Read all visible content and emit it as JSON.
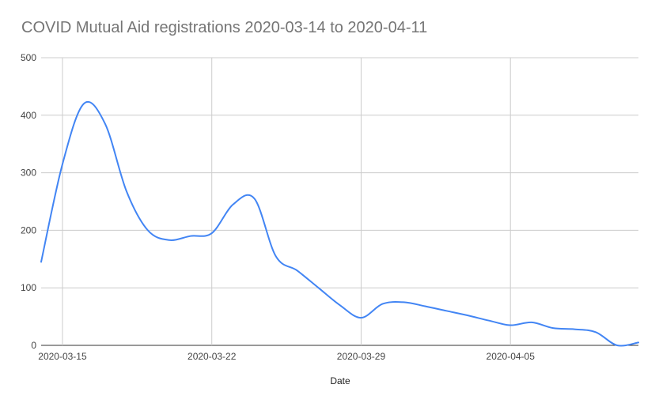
{
  "chart_data": {
    "type": "line",
    "title": "COVID Mutual Aid registrations 2020-03-14 to 2020-04-11",
    "xlabel": "Date",
    "ylabel": "",
    "ylim": [
      0,
      500
    ],
    "yticks": [
      0,
      100,
      200,
      300,
      400,
      500
    ],
    "xticks": [
      "2020-03-15",
      "2020-03-22",
      "2020-03-29",
      "2020-04-05"
    ],
    "grid": true,
    "legend": "none",
    "color": "#4285f4",
    "x": [
      "2020-03-14",
      "2020-03-15",
      "2020-03-16",
      "2020-03-17",
      "2020-03-18",
      "2020-03-19",
      "2020-03-20",
      "2020-03-21",
      "2020-03-22",
      "2020-03-23",
      "2020-03-24",
      "2020-03-25",
      "2020-03-26",
      "2020-03-27",
      "2020-03-28",
      "2020-03-29",
      "2020-03-30",
      "2020-03-31",
      "2020-04-01",
      "2020-04-02",
      "2020-04-03",
      "2020-04-04",
      "2020-04-05",
      "2020-04-06",
      "2020-04-07",
      "2020-04-08",
      "2020-04-09",
      "2020-04-10",
      "2020-04-11"
    ],
    "series": [
      {
        "values": [
          145,
          315,
          420,
          385,
          268,
          200,
          183,
          190,
          195,
          245,
          255,
          155,
          130,
          100,
          70,
          48,
          72,
          75,
          68,
          60,
          52,
          43,
          35,
          40,
          30,
          28,
          23,
          0,
          5
        ]
      }
    ]
  }
}
